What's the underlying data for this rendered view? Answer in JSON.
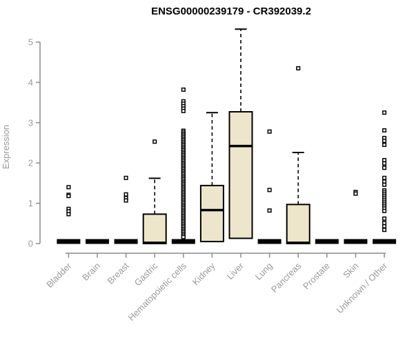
{
  "colors": {
    "box_fill": "#ede6cb",
    "box_border": "#000000",
    "median": "#000000",
    "whisker": "#000000",
    "outlier_stroke": "#000000",
    "outlier_fill": "#ffffff",
    "axis": "#8a8a8a",
    "tick_label": "#9a9a9a",
    "title": "#000000"
  },
  "chart_data": {
    "type": "boxplot",
    "title": "ENSG00000239179 - CR392039.2",
    "ylabel": "Expression",
    "xlabel": "",
    "ylim": [
      0,
      5.4
    ],
    "yticks": [
      0,
      1,
      2,
      3,
      4,
      5
    ],
    "grid": false,
    "legend": "none",
    "categories": [
      "Bladder",
      "Brain",
      "Breast",
      "Gastric",
      "Hematopoietic cells",
      "Kidney",
      "Liver",
      "Lung",
      "Pancreas",
      "Prostate",
      "Skin",
      "Unknown / Other"
    ],
    "series": [
      {
        "name": "Bladder",
        "q1": 0,
        "median": 0.01,
        "q3": 0.04,
        "whisker_low": 0,
        "whisker_high": 0.04,
        "outliers": [
          1.4,
          1.21,
          1.18,
          0.86,
          0.8,
          0.73
        ]
      },
      {
        "name": "Brain",
        "q1": 0,
        "median": 0.01,
        "q3": 0.03,
        "whisker_low": 0,
        "whisker_high": 0.03,
        "outliers": []
      },
      {
        "name": "Breast",
        "q1": 0,
        "median": 0.01,
        "q3": 0.03,
        "whisker_low": 0,
        "whisker_high": 0.03,
        "outliers": [
          1.63,
          1.22,
          1.13,
          1.07
        ]
      },
      {
        "name": "Gastric",
        "q1": 0,
        "median": 0.02,
        "q3": 0.73,
        "whisker_low": 0,
        "whisker_high": 1.62,
        "outliers": [
          2.53
        ]
      },
      {
        "name": "Hematopoietic cells",
        "q1": 0,
        "median": 0.01,
        "q3": 0.04,
        "whisker_low": 0,
        "whisker_high": 0.04,
        "outliers": [
          3.82,
          3.53,
          3.47,
          3.41,
          3.35,
          3.29,
          2.8,
          2.76,
          2.72,
          2.68,
          2.64,
          2.6,
          2.56,
          2.52,
          2.48,
          2.44,
          2.4,
          2.36,
          2.32,
          2.28,
          2.24,
          2.2,
          2.16,
          2.12,
          2.08,
          2.04,
          2.0,
          1.96,
          1.92,
          1.88,
          1.84,
          1.8,
          1.76,
          1.72,
          1.68,
          1.64,
          1.6,
          1.56,
          1.52,
          1.48,
          1.44,
          1.4,
          1.36,
          1.32,
          1.28,
          1.24,
          1.2,
          1.16,
          1.12,
          1.08,
          1.04,
          1.0,
          0.96,
          0.92,
          0.88,
          0.84,
          0.8,
          0.76,
          0.72,
          0.68,
          0.64,
          0.6,
          0.56,
          0.52,
          0.48,
          0.44,
          0.4,
          0.36,
          0.32,
          0.28,
          0.24,
          0.2,
          0.16
        ]
      },
      {
        "name": "Kidney",
        "q1": 0.05,
        "median": 0.83,
        "q3": 1.44,
        "whisker_low": 0.05,
        "whisker_high": 3.25,
        "outliers": []
      },
      {
        "name": "Liver",
        "q1": 0.13,
        "median": 2.42,
        "q3": 3.27,
        "whisker_low": 0.13,
        "whisker_high": 5.32,
        "outliers": []
      },
      {
        "name": "Lung",
        "q1": 0,
        "median": 0.01,
        "q3": 0.03,
        "whisker_low": 0,
        "whisker_high": 0.03,
        "outliers": [
          2.78,
          1.33,
          0.82
        ]
      },
      {
        "name": "Pancreas",
        "q1": 0,
        "median": 0.02,
        "q3": 0.97,
        "whisker_low": 0,
        "whisker_high": 2.26,
        "outliers": [
          4.35
        ]
      },
      {
        "name": "Prostate",
        "q1": 0,
        "median": 0.01,
        "q3": 0.03,
        "whisker_low": 0,
        "whisker_high": 0.03,
        "outliers": []
      },
      {
        "name": "Skin",
        "q1": 0,
        "median": 0.01,
        "q3": 0.03,
        "whisker_low": 0,
        "whisker_high": 0.03,
        "outliers": [
          1.28,
          1.24
        ]
      },
      {
        "name": "Unknown / Other",
        "q1": 0,
        "median": 0.01,
        "q3": 0.04,
        "whisker_low": 0,
        "whisker_high": 0.04,
        "outliers": [
          3.25,
          2.81,
          2.62,
          2.55,
          2.45,
          2.07,
          1.99,
          1.88,
          1.63,
          1.54,
          1.46,
          1.32,
          1.27,
          1.22,
          1.17,
          1.12,
          1.07,
          1.02,
          0.97,
          0.92,
          0.87,
          0.81,
          0.62,
          0.51,
          0.43,
          0.34
        ]
      }
    ]
  }
}
